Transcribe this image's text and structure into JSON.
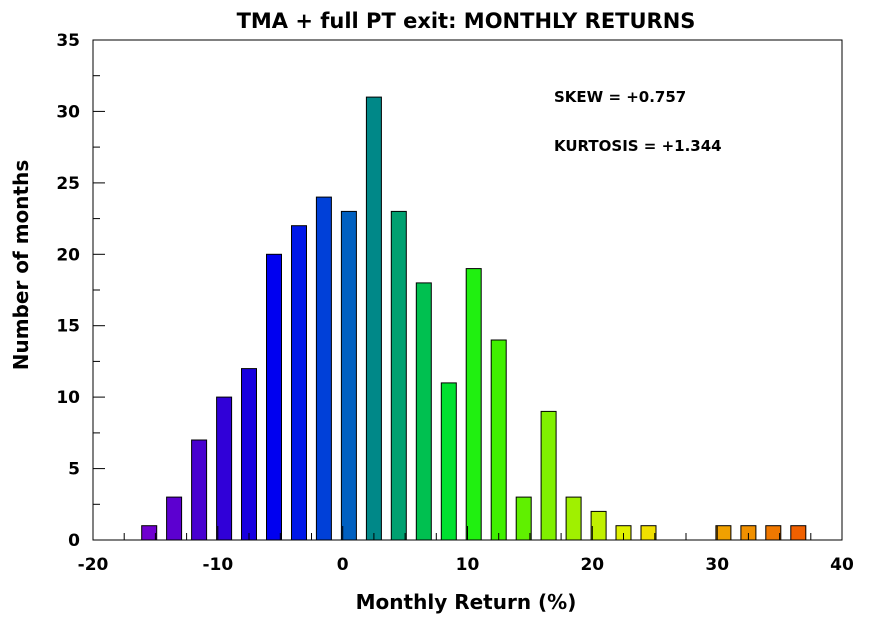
{
  "chart_data": {
    "type": "bar",
    "title": "TMA + full PT exit:   MONTHLY RETURNS",
    "xlabel": "Monthly Return (%)",
    "ylabel": "Number of months",
    "xlim": [
      -20,
      40
    ],
    "ylim": [
      0,
      35
    ],
    "x_ticks": [
      -20,
      -10,
      0,
      10,
      20,
      30,
      40
    ],
    "x_tick_labels": [
      "-20",
      "-10",
      "0",
      "10",
      "20",
      "30",
      "40"
    ],
    "y_ticks": [
      0,
      5,
      10,
      15,
      20,
      25,
      30,
      35
    ],
    "y_tick_labels": [
      "0",
      "5",
      "10",
      "15",
      "20",
      "25",
      "30",
      "35"
    ],
    "bin_width": 2,
    "bin_centers": [
      -17.5,
      -15.5,
      -13.5,
      -11.5,
      -9.5,
      -7.5,
      -5.5,
      -3.5,
      -1.5,
      0.5,
      2.5,
      4.5,
      6.5,
      8.5,
      10.5,
      12.5,
      14.5,
      16.5,
      18.5,
      20.5,
      22.5,
      24.5,
      26.5,
      28.5,
      30.5,
      32.5,
      34.5,
      36.5
    ],
    "values": [
      0,
      1,
      3,
      7,
      10,
      12,
      20,
      22,
      24,
      23,
      31,
      23,
      18,
      11,
      19,
      14,
      3,
      9,
      3,
      2,
      1,
      1,
      0,
      0,
      1,
      1,
      1,
      1
    ],
    "bar_colors": [
      "#7a00d0",
      "#7000d0",
      "#5c00d0",
      "#4800d0",
      "#3000d8",
      "#1800e0",
      "#0000f0",
      "#0018e8",
      "#0040d8",
      "#0060c0",
      "#008888",
      "#00a070",
      "#00c050",
      "#00e030",
      "#20f010",
      "#40f000",
      "#60f000",
      "#80f000",
      "#a0f000",
      "#c0f000",
      "#e0f000",
      "#f0e000",
      "#f0d000",
      "#f0c000",
      "#f0a000",
      "#f09000",
      "#f07800",
      "#f06000"
    ],
    "annotations": [
      "SKEW = +0.757",
      "KURTOSIS = +1.344"
    ],
    "grid": false,
    "legend": "none"
  }
}
